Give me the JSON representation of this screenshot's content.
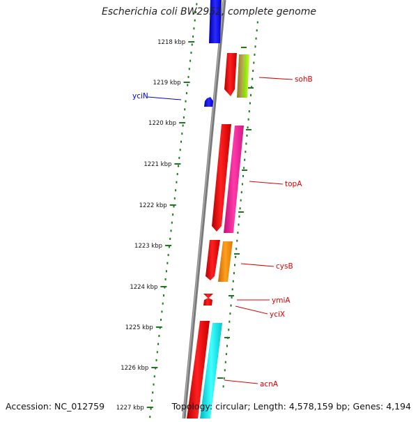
{
  "title": "Escherichia coli BW2952, complete genome",
  "footer": {
    "accession": "Accession: NC_012759",
    "summary": "Topology: circular; Length: 4,578,159 bp; Genes: 4,194"
  },
  "scale": {
    "ticks": [
      "1218 kbp",
      "1219 kbp",
      "1220 kbp",
      "1221 kbp",
      "1222 kbp",
      "1223 kbp",
      "1224 kbp",
      "1225 kbp",
      "1226 kbp",
      "1227 kbp"
    ]
  },
  "genes": [
    {
      "name": "sohB",
      "color": "#cc0000"
    },
    {
      "name": "yciN",
      "color": "#0000cc"
    },
    {
      "name": "topA",
      "color": "#cc0000"
    },
    {
      "name": "cysB",
      "color": "#cc0000"
    },
    {
      "name": "ymiA",
      "color": "#cc0000"
    },
    {
      "name": "yciX",
      "color": "#cc0000"
    },
    {
      "name": "acnA",
      "color": "#cc0000"
    }
  ],
  "colors": {
    "tick_green": "#1a7a1a",
    "backbone": "#808080",
    "gene_red": "#ee0000",
    "gene_blue": "#0000ee",
    "pink": "#ee1493",
    "orange": "#ff8c00",
    "cyan": "#00e5ee",
    "olive": "#b5a642",
    "lime": "#9aee00"
  }
}
